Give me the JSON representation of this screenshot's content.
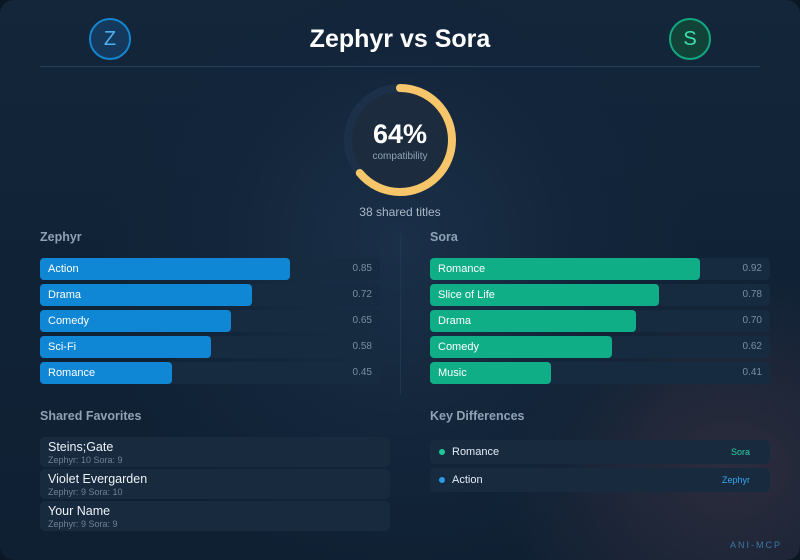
{
  "header": {
    "title": "Zephyr vs Sora",
    "user_a": {
      "initial": "Z",
      "name": "Zephyr"
    },
    "user_b": {
      "initial": "S",
      "name": "Sora"
    }
  },
  "compatibility": {
    "value": 0.64,
    "percent_label": "64%",
    "caption": "compatibility",
    "shared_titles": "38 shared titles"
  },
  "zephyr_genres": {
    "label": "Zephyr",
    "items": [
      {
        "name": "Action",
        "value": 0.85,
        "value_label": "0.85"
      },
      {
        "name": "Drama",
        "value": 0.72,
        "value_label": "0.72"
      },
      {
        "name": "Comedy",
        "value": 0.65,
        "value_label": "0.65"
      },
      {
        "name": "Sci-Fi",
        "value": 0.58,
        "value_label": "0.58"
      },
      {
        "name": "Romance",
        "value": 0.45,
        "value_label": "0.45"
      }
    ]
  },
  "sora_genres": {
    "label": "Sora",
    "items": [
      {
        "name": "Romance",
        "value": 0.92,
        "value_label": "0.92"
      },
      {
        "name": "Slice of Life",
        "value": 0.78,
        "value_label": "0.78"
      },
      {
        "name": "Drama",
        "value": 0.7,
        "value_label": "0.70"
      },
      {
        "name": "Comedy",
        "value": 0.62,
        "value_label": "0.62"
      },
      {
        "name": "Music",
        "value": 0.41,
        "value_label": "0.41"
      }
    ]
  },
  "shared_favorites": {
    "label": "Shared Favorites",
    "items": [
      {
        "title": "Steins;Gate",
        "meta": "Zephyr: 10 Sora: 9"
      },
      {
        "title": "Violet Evergarden",
        "meta": "Zephyr: 9 Sora: 10"
      },
      {
        "title": "Your Name",
        "meta": "Zephyr: 9 Sora: 9"
      }
    ]
  },
  "key_differences": {
    "label": "Key Differences",
    "items": [
      {
        "genre": "Romance",
        "owner": "Sora",
        "color": "#1fc79a"
      },
      {
        "genre": "Action",
        "owner": "Zephyr",
        "color": "#2b9be8"
      }
    ]
  },
  "colors": {
    "zephyr": "#0f87d4",
    "sora": "#0fae87",
    "gauge": "#f7c66a",
    "gauge_track": "#1c3149"
  },
  "brand": "ANI-MCP"
}
